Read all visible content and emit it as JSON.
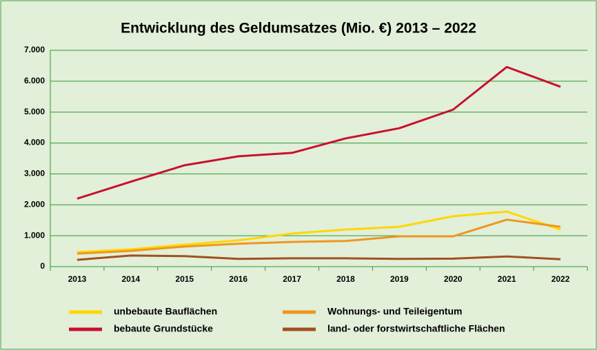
{
  "chart_data": {
    "type": "line",
    "title": "Entwicklung des Geldumsatzes (Mio. €) 2013 – 2022",
    "categories": [
      "2013",
      "2014",
      "2015",
      "2016",
      "2017",
      "2018",
      "2019",
      "2020",
      "2021",
      "2022"
    ],
    "series": [
      {
        "name": "unbebaute Bauflächen",
        "color": "#ffd700",
        "values": [
          470,
          560,
          710,
          850,
          1070,
          1200,
          1290,
          1630,
          1780,
          1200
        ]
      },
      {
        "name": "Wohnungs- und Teileigentum",
        "color": "#f0961e",
        "values": [
          420,
          510,
          650,
          740,
          800,
          830,
          980,
          980,
          1520,
          1290
        ]
      },
      {
        "name": "bebaute Grundstücke",
        "color": "#c8102e",
        "values": [
          2200,
          2750,
          3280,
          3570,
          3680,
          4150,
          4480,
          5080,
          6460,
          5820
        ]
      },
      {
        "name": "land- oder forstwirtschaftliche Flächen",
        "color": "#a0501e",
        "values": [
          220,
          360,
          340,
          250,
          270,
          270,
          250,
          260,
          330,
          240
        ]
      }
    ],
    "ylim": [
      0,
      7000
    ],
    "yticks": [
      0,
      {
        "value": 1000,
        "label": "1.000"
      },
      {
        "value": 2000,
        "label": "2.000"
      },
      {
        "value": 3000,
        "label": "3.000"
      },
      {
        "value": 4000,
        "label": "4.000"
      },
      {
        "value": 5000,
        "label": "5.000"
      },
      {
        "value": 6000,
        "label": "6.000"
      },
      {
        "value": 7000,
        "label": "7.000"
      }
    ],
    "grid": true
  }
}
